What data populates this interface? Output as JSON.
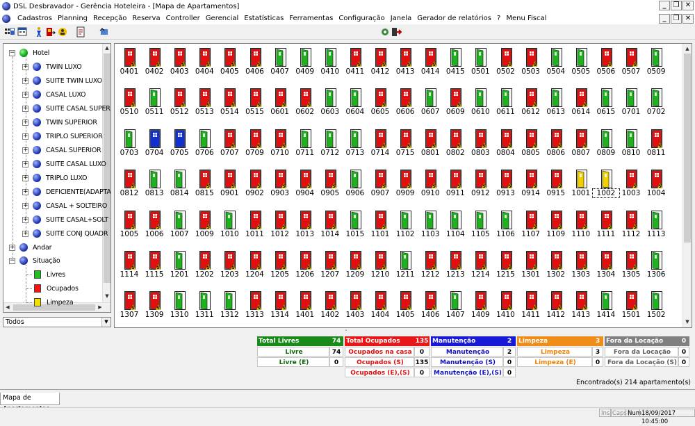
{
  "window": {
    "title": "DSL Desbravador - Gerência Hoteleira - [Mapa de Apartamentos]"
  },
  "menu": [
    "Cadastros",
    "Planning",
    "Recepção",
    "Reserva",
    "Controller",
    "Gerencial",
    "Estatísticas",
    "Ferramentas",
    "Configuração",
    "Janela",
    "Gerador de relatórios",
    "?",
    "Menu Fiscal"
  ],
  "tree": {
    "root": "Hotel",
    "types": [
      "TWIN LUXO",
      "SUITE TWIN LUXO",
      "CASAL LUXO",
      "SUITE CASAL SUPER",
      "TWIN SUPERIOR",
      "TRIPLO SUPERIOR",
      "CASAL SUPERIOR",
      "SUITE CASAL LUXO",
      "TRIPLO LUXO",
      "DEFICIENTE(ADAPTA",
      "CASAL + SOLTEIRO",
      "SUITE CASAL+SOLT",
      "SUITE CONJ QUADR"
    ],
    "andar": "Andar",
    "situacao": "Situação",
    "situacao_items": [
      {
        "label": "Livres",
        "color": "#20c020"
      },
      {
        "label": "Ocupados",
        "color": "#ff1010"
      },
      {
        "label": "Limpeza",
        "color": "#f0e000"
      }
    ]
  },
  "filter": {
    "value": "Todos"
  },
  "colors": {
    "livre": "#20b020",
    "ocupado": "#e01010",
    "manutencao": "#1030d0",
    "limpeza": "#f0d000"
  },
  "rooms": [
    {
      "n": "0401",
      "s": "O"
    },
    {
      "n": "0402",
      "s": "O"
    },
    {
      "n": "0403",
      "s": "O"
    },
    {
      "n": "0404",
      "s": "O"
    },
    {
      "n": "0405",
      "s": "O"
    },
    {
      "n": "0406",
      "s": "O"
    },
    {
      "n": "0407",
      "s": "L"
    },
    {
      "n": "0409",
      "s": "L"
    },
    {
      "n": "0410",
      "s": "L"
    },
    {
      "n": "0411",
      "s": "O"
    },
    {
      "n": "0412",
      "s": "O"
    },
    {
      "n": "0413",
      "s": "O"
    },
    {
      "n": "0414",
      "s": "O"
    },
    {
      "n": "0415",
      "s": "L"
    },
    {
      "n": "0501",
      "s": "L"
    },
    {
      "n": "0502",
      "s": "O"
    },
    {
      "n": "0503",
      "s": "O"
    },
    {
      "n": "0504",
      "s": "L"
    },
    {
      "n": "0505",
      "s": "L"
    },
    {
      "n": "0506",
      "s": "O"
    },
    {
      "n": "0507",
      "s": "O"
    },
    {
      "n": "0509",
      "s": "L"
    },
    {
      "n": "0510",
      "s": "O"
    },
    {
      "n": "0511",
      "s": "L"
    },
    {
      "n": "0512",
      "s": "O"
    },
    {
      "n": "0513",
      "s": "O"
    },
    {
      "n": "0514",
      "s": "O"
    },
    {
      "n": "0515",
      "s": "O"
    },
    {
      "n": "0601",
      "s": "O"
    },
    {
      "n": "0602",
      "s": "O"
    },
    {
      "n": "0603",
      "s": "L"
    },
    {
      "n": "0604",
      "s": "L"
    },
    {
      "n": "0605",
      "s": "O"
    },
    {
      "n": "0606",
      "s": "O"
    },
    {
      "n": "0607",
      "s": "L"
    },
    {
      "n": "0609",
      "s": "O"
    },
    {
      "n": "0610",
      "s": "L"
    },
    {
      "n": "0611",
      "s": "L"
    },
    {
      "n": "0612",
      "s": "O"
    },
    {
      "n": "0613",
      "s": "L"
    },
    {
      "n": "0614",
      "s": "O"
    },
    {
      "n": "0615",
      "s": "L"
    },
    {
      "n": "0701",
      "s": "L"
    },
    {
      "n": "0702",
      "s": "L"
    },
    {
      "n": "0703",
      "s": "L"
    },
    {
      "n": "0704",
      "s": "M"
    },
    {
      "n": "0705",
      "s": "M"
    },
    {
      "n": "0706",
      "s": "L"
    },
    {
      "n": "0707",
      "s": "O"
    },
    {
      "n": "0709",
      "s": "O"
    },
    {
      "n": "0710",
      "s": "O"
    },
    {
      "n": "0711",
      "s": "L"
    },
    {
      "n": "0712",
      "s": "L"
    },
    {
      "n": "0713",
      "s": "L"
    },
    {
      "n": "0714",
      "s": "O"
    },
    {
      "n": "0715",
      "s": "O"
    },
    {
      "n": "0801",
      "s": "O"
    },
    {
      "n": "0802",
      "s": "O"
    },
    {
      "n": "0803",
      "s": "O"
    },
    {
      "n": "0804",
      "s": "O"
    },
    {
      "n": "0805",
      "s": "O"
    },
    {
      "n": "0806",
      "s": "O"
    },
    {
      "n": "0807",
      "s": "O"
    },
    {
      "n": "0809",
      "s": "L"
    },
    {
      "n": "0810",
      "s": "L"
    },
    {
      "n": "0811",
      "s": "O"
    },
    {
      "n": "0812",
      "s": "O"
    },
    {
      "n": "0813",
      "s": "L"
    },
    {
      "n": "0814",
      "s": "L"
    },
    {
      "n": "0815",
      "s": "O"
    },
    {
      "n": "0901",
      "s": "O"
    },
    {
      "n": "0902",
      "s": "O"
    },
    {
      "n": "0903",
      "s": "O"
    },
    {
      "n": "0904",
      "s": "O"
    },
    {
      "n": "0905",
      "s": "O"
    },
    {
      "n": "0906",
      "s": "L"
    },
    {
      "n": "0907",
      "s": "O"
    },
    {
      "n": "0909",
      "s": "O"
    },
    {
      "n": "0910",
      "s": "O"
    },
    {
      "n": "0911",
      "s": "O"
    },
    {
      "n": "0912",
      "s": "O"
    },
    {
      "n": "0913",
      "s": "O"
    },
    {
      "n": "0914",
      "s": "O"
    },
    {
      "n": "0915",
      "s": "O"
    },
    {
      "n": "1001",
      "s": "Y"
    },
    {
      "n": "1002",
      "s": "Y"
    },
    {
      "n": "1003",
      "s": "O"
    },
    {
      "n": "1004",
      "s": "O"
    },
    {
      "n": "1005",
      "s": "O"
    },
    {
      "n": "1006",
      "s": "O"
    },
    {
      "n": "1007",
      "s": "L"
    },
    {
      "n": "1009",
      "s": "O"
    },
    {
      "n": "1010",
      "s": "L"
    },
    {
      "n": "1011",
      "s": "O"
    },
    {
      "n": "1012",
      "s": "O"
    },
    {
      "n": "1013",
      "s": "O"
    },
    {
      "n": "1014",
      "s": "O"
    },
    {
      "n": "1015",
      "s": "L"
    },
    {
      "n": "1101",
      "s": "O"
    },
    {
      "n": "1102",
      "s": "L"
    },
    {
      "n": "1103",
      "s": "L"
    },
    {
      "n": "1104",
      "s": "L"
    },
    {
      "n": "1105",
      "s": "L"
    },
    {
      "n": "1106",
      "s": "L"
    },
    {
      "n": "1107",
      "s": "O"
    },
    {
      "n": "1109",
      "s": "O"
    },
    {
      "n": "1110",
      "s": "O"
    },
    {
      "n": "1111",
      "s": "O"
    },
    {
      "n": "1112",
      "s": "O"
    },
    {
      "n": "1113",
      "s": "L"
    },
    {
      "n": "1114",
      "s": "O"
    },
    {
      "n": "1115",
      "s": "O"
    },
    {
      "n": "1201",
      "s": "L"
    },
    {
      "n": "1202",
      "s": "O"
    },
    {
      "n": "1203",
      "s": "O"
    },
    {
      "n": "1204",
      "s": "O"
    },
    {
      "n": "1205",
      "s": "O"
    },
    {
      "n": "1206",
      "s": "O"
    },
    {
      "n": "1207",
      "s": "O"
    },
    {
      "n": "1209",
      "s": "O"
    },
    {
      "n": "1210",
      "s": "O"
    },
    {
      "n": "1211",
      "s": "L"
    },
    {
      "n": "1212",
      "s": "O"
    },
    {
      "n": "1213",
      "s": "O"
    },
    {
      "n": "1214",
      "s": "O"
    },
    {
      "n": "1215",
      "s": "O"
    },
    {
      "n": "1301",
      "s": "O"
    },
    {
      "n": "1302",
      "s": "O"
    },
    {
      "n": "1303",
      "s": "O"
    },
    {
      "n": "1304",
      "s": "O"
    },
    {
      "n": "1305",
      "s": "O"
    },
    {
      "n": "1306",
      "s": "L"
    },
    {
      "n": "1307",
      "s": "O"
    },
    {
      "n": "1309",
      "s": "O"
    },
    {
      "n": "1310",
      "s": "L"
    },
    {
      "n": "1311",
      "s": "L"
    },
    {
      "n": "1312",
      "s": "L"
    },
    {
      "n": "1313",
      "s": "O"
    },
    {
      "n": "1314",
      "s": "O"
    },
    {
      "n": "1401",
      "s": "O"
    },
    {
      "n": "1402",
      "s": "O"
    },
    {
      "n": "1403",
      "s": "O"
    },
    {
      "n": "1404",
      "s": "O"
    },
    {
      "n": "1405",
      "s": "O"
    },
    {
      "n": "1406",
      "s": "O"
    },
    {
      "n": "1407",
      "s": "L"
    },
    {
      "n": "1409",
      "s": "O"
    },
    {
      "n": "1410",
      "s": "O"
    },
    {
      "n": "1411",
      "s": "O"
    },
    {
      "n": "1412",
      "s": "O"
    },
    {
      "n": "1413",
      "s": "O"
    },
    {
      "n": "1414",
      "s": "L"
    },
    {
      "n": "1501",
      "s": "O"
    },
    {
      "n": "1502",
      "s": "L"
    }
  ],
  "selected_room": "1002",
  "summary": [
    {
      "title": "Total Livres",
      "total": "74",
      "head_bg": "#1a8a1a",
      "text_color": "#0a6a0a",
      "rows": [
        {
          "label": "Livre",
          "value": "74"
        },
        {
          "label": "Livre (E)",
          "value": "0"
        }
      ]
    },
    {
      "title": "Total Ocupados",
      "total": "135",
      "head_bg": "#e81818",
      "text_color": "#e01010",
      "rows": [
        {
          "label": "Ocupados na casa",
          "value": "0"
        },
        {
          "label": "Ocupados (S)",
          "value": "135"
        },
        {
          "label": "Ocupados (E),(S)",
          "value": "0"
        }
      ]
    },
    {
      "title": "Manutenção",
      "total": "2",
      "head_bg": "#1818d8",
      "text_color": "#1010c0",
      "rows": [
        {
          "label": "Manutenção",
          "value": "2"
        },
        {
          "label": "Manutenção (S)",
          "value": "0"
        },
        {
          "label": "Manutenção (E),(S)",
          "value": "0"
        }
      ]
    },
    {
      "title": "Limpeza",
      "total": "3",
      "head_bg": "#f08c18",
      "text_color": "#f08000",
      "rows": [
        {
          "label": "Limpeza",
          "value": "3"
        },
        {
          "label": "Limpeza (E)",
          "value": "0"
        }
      ]
    },
    {
      "title": "Fora da Locação",
      "total": "0",
      "head_bg": "#808080",
      "text_color": "#606060",
      "rows": [
        {
          "label": "Fora da Locação",
          "value": "0"
        },
        {
          "label": "Fora da Locação (S)",
          "value": "0"
        }
      ]
    }
  ],
  "found_text": "Encontrado(s) 214 apartamento(s)",
  "tab_label": "Mapa de Apartamentos",
  "status": {
    "ins": "Ins",
    "caps": "Caps",
    "num": "Num",
    "datetime": "18/09/2017 10:45:00"
  }
}
